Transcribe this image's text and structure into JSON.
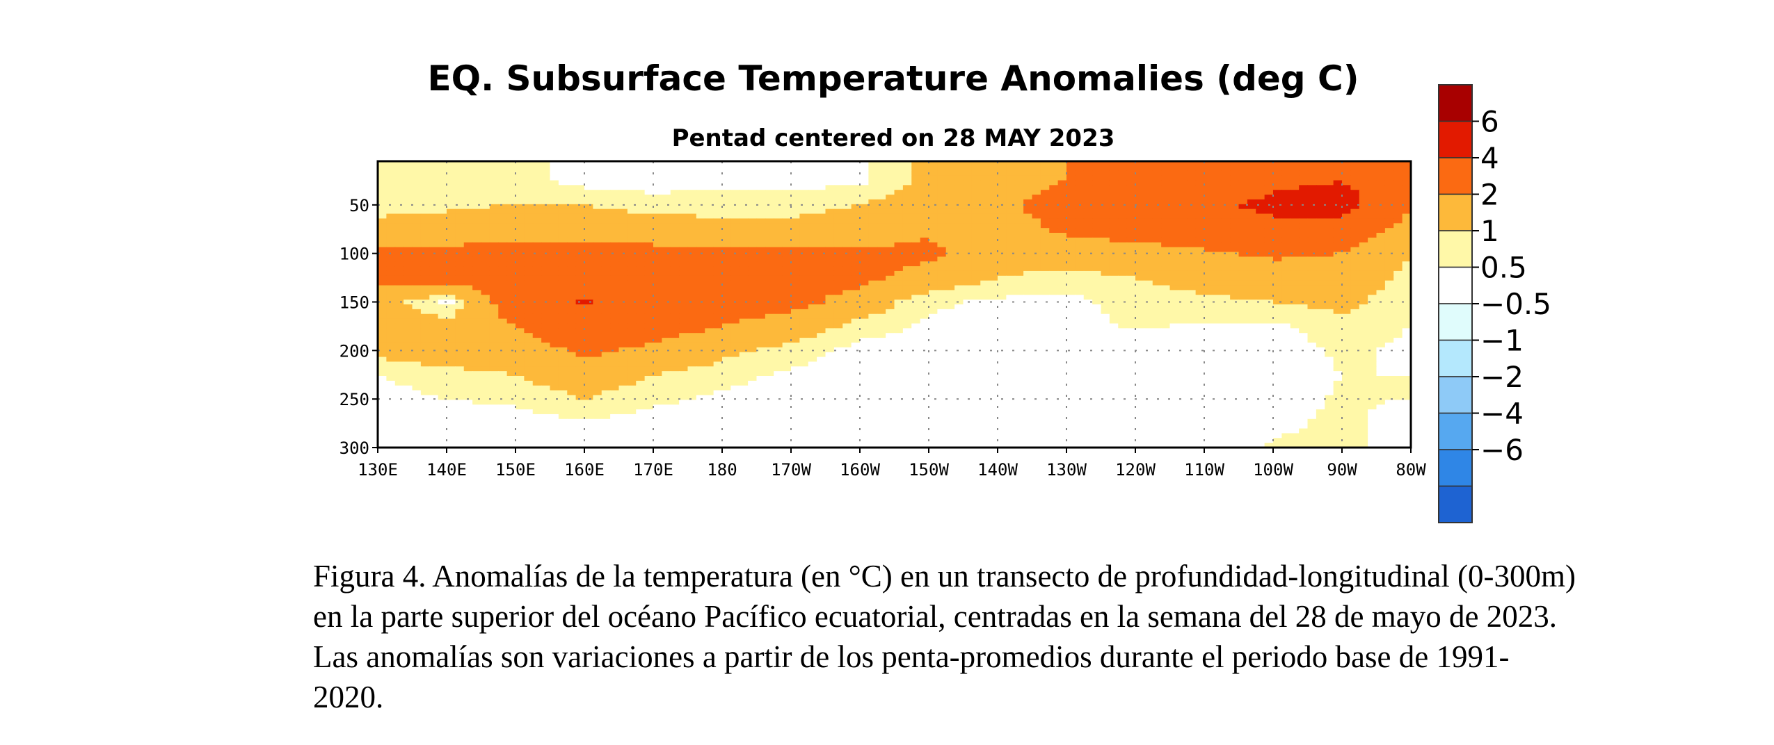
{
  "chart_data": {
    "type": "heatmap",
    "title": "EQ. Subsurface Temperature Anomalies (deg C)",
    "subtitle": "Pentad centered on 28 MAY 2023",
    "xlabel": "",
    "ylabel": "",
    "x_range": [
      130,
      280
    ],
    "y_range": [
      300,
      5
    ],
    "x_ticks": [
      {
        "value": 130,
        "label": "130E"
      },
      {
        "value": 140,
        "label": "140E"
      },
      {
        "value": 150,
        "label": "150E"
      },
      {
        "value": 160,
        "label": "160E"
      },
      {
        "value": 170,
        "label": "170E"
      },
      {
        "value": 180,
        "label": "180"
      },
      {
        "value": 190,
        "label": "170W"
      },
      {
        "value": 200,
        "label": "160W"
      },
      {
        "value": 210,
        "label": "150W"
      },
      {
        "value": 220,
        "label": "140W"
      },
      {
        "value": 230,
        "label": "130W"
      },
      {
        "value": 240,
        "label": "120W"
      },
      {
        "value": 250,
        "label": "110W"
      },
      {
        "value": 260,
        "label": "100W"
      },
      {
        "value": 270,
        "label": "90W"
      },
      {
        "value": 280,
        "label": "80W"
      }
    ],
    "y_ticks": [
      {
        "value": 50,
        "label": "50"
      },
      {
        "value": 100,
        "label": "100"
      },
      {
        "value": 150,
        "label": "150"
      },
      {
        "value": 200,
        "label": "200"
      },
      {
        "value": 250,
        "label": "250"
      },
      {
        "value": 300,
        "label": "300"
      }
    ],
    "grid": true,
    "colorbar": {
      "placement": "right",
      "levels": [
        {
          "color": "#a80000",
          "boundary_label": "6"
        },
        {
          "color": "#e21a00",
          "boundary_label": "4"
        },
        {
          "color": "#fb6a12",
          "boundary_label": "2"
        },
        {
          "color": "#fdb93a",
          "boundary_label": "1"
        },
        {
          "color": "#fff8a8",
          "boundary_label": "0.5"
        },
        {
          "color": "#ffffff",
          "boundary_label": "−0.5"
        },
        {
          "color": "#e0fcfc",
          "boundary_label": "−1"
        },
        {
          "color": "#b4e8fd",
          "boundary_label": "−2"
        },
        {
          "color": "#8ecaf7",
          "boundary_label": "−4"
        },
        {
          "color": "#56a8f0",
          "boundary_label": "−6"
        },
        {
          "color": "#2f86e6",
          "boundary_label": ""
        },
        {
          "color": "#1e63d2",
          "boundary_label": ""
        }
      ]
    },
    "approx_anomaly_at_depth_deg_C": {
      "x": [
        130,
        140,
        150,
        160,
        170,
        180,
        190,
        200,
        210,
        220,
        230,
        240,
        250,
        260,
        270,
        280
      ],
      "depths_m": [
        25,
        50,
        75,
        100,
        125,
        150,
        175,
        200,
        225,
        250,
        275,
        300
      ],
      "values": [
        [
          0.6,
          0.6,
          0.7,
          0.3,
          0.2,
          0.3,
          0.3,
          0.4,
          1.2,
          1.5,
          2.0,
          2.2,
          2.5,
          3.5,
          4.0,
          2.0
        ],
        [
          0.8,
          0.9,
          1.0,
          1.0,
          0.8,
          0.8,
          0.8,
          1.0,
          1.5,
          1.8,
          2.5,
          2.8,
          3.5,
          4.5,
          5.0,
          2.0
        ],
        [
          1.2,
          1.3,
          1.5,
          1.5,
          1.3,
          1.2,
          1.2,
          1.3,
          1.8,
          1.5,
          2.2,
          2.5,
          3.0,
          3.5,
          3.0,
          1.5
        ],
        [
          2.2,
          2.3,
          2.5,
          2.5,
          2.4,
          2.3,
          2.2,
          2.2,
          2.3,
          1.3,
          1.5,
          1.5,
          1.8,
          2.2,
          2.0,
          1.0
        ],
        [
          2.2,
          2.5,
          2.8,
          2.9,
          2.8,
          2.6,
          2.5,
          2.3,
          1.5,
          1.0,
          0.8,
          1.0,
          1.2,
          1.4,
          1.6,
          0.8
        ],
        [
          1.5,
          0.3,
          2.8,
          4.2,
          3.0,
          2.6,
          2.4,
          1.5,
          0.6,
          0.4,
          0.3,
          0.8,
          0.9,
          1.0,
          1.2,
          0.6
        ],
        [
          1.5,
          1.3,
          2.0,
          2.8,
          2.5,
          2.0,
          1.5,
          0.8,
          0.4,
          0.3,
          0.2,
          0.6,
          0.4,
          0.4,
          0.8,
          0.5
        ],
        [
          1.2,
          1.5,
          1.5,
          2.2,
          1.8,
          1.2,
          0.8,
          0.3,
          0.2,
          0.1,
          0.1,
          0.1,
          0.1,
          0.2,
          0.6,
          0.4
        ],
        [
          0.5,
          0.8,
          1.0,
          1.5,
          1.0,
          0.7,
          0.4,
          0.1,
          0.0,
          0.0,
          0.0,
          0.0,
          0.0,
          0.2,
          0.5,
          0.5
        ],
        [
          0.3,
          0.5,
          0.6,
          1.0,
          0.6,
          0.4,
          0.2,
          0.0,
          0.0,
          0.0,
          0.0,
          0.0,
          0.0,
          0.1,
          0.6,
          0.5
        ],
        [
          0.1,
          0.2,
          0.3,
          0.4,
          0.3,
          0.2,
          0.1,
          0.0,
          0.0,
          0.0,
          0.0,
          0.0,
          0.0,
          0.3,
          0.7,
          0.1
        ],
        [
          -0.6,
          0.0,
          0.1,
          0.2,
          0.1,
          0.0,
          0.0,
          0.0,
          0.0,
          0.0,
          0.0,
          0.0,
          0.0,
          0.6,
          0.8,
          0.0
        ]
      ]
    }
  },
  "caption": "Figura 4. Anomalías de la temperatura (en °C) en un transecto de profundidad-longitudinal (0-300m) en la parte superior del océano Pacífico ecuatorial, centradas en la semana del 28 de mayo de 2023. Las anomalías son variaciones a partir de los penta-promedios durante el periodo base de 1991-2020."
}
